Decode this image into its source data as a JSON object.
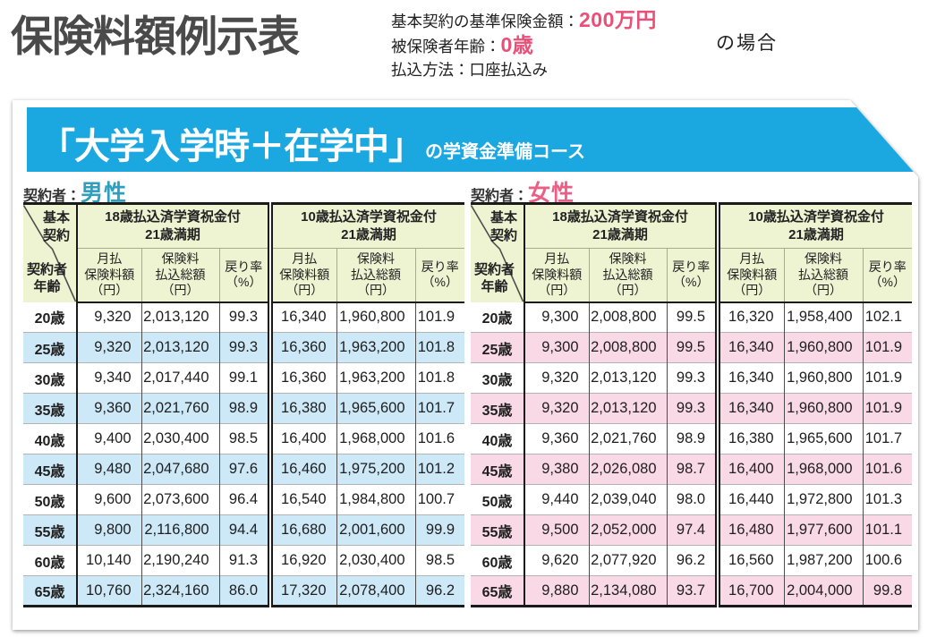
{
  "page": {
    "title": "保険料額例示表",
    "conditions": {
      "line1_label": "基本契約の基準保険金額：",
      "line1_value": "200万円",
      "line2_label": "被保険者年齢：",
      "line2_value": "0歳",
      "line3_label": "払込方法：口座払込み",
      "case_suffix": "の場合"
    }
  },
  "banner": {
    "title": "「大学入学時＋在学中」",
    "subtitle": "の学資金準備コース"
  },
  "table_header": {
    "corner_top": "基本\n契約",
    "corner_bottom": "契約者\n年齢",
    "group1": "18歳払込済学資祝金付\n21歳満期",
    "group2": "10歳払込済学資祝金付\n21歳満期",
    "sub1": "月払\n保険料額\n（円）",
    "sub2": "保険料\n払込総額\n（円）",
    "sub3": "戻り率\n（%）"
  },
  "tables": [
    {
      "id": "male",
      "contractor_label": "契約者：",
      "contractor": "男性",
      "stripe": "blue",
      "rows": [
        {
          "age": "20歳",
          "cells": [
            "9,320",
            "2,013,120",
            "99.3",
            "16,340",
            "1,960,800",
            "101.9"
          ]
        },
        {
          "age": "25歳",
          "cells": [
            "9,320",
            "2,013,120",
            "99.3",
            "16,360",
            "1,963,200",
            "101.8"
          ]
        },
        {
          "age": "30歳",
          "cells": [
            "9,340",
            "2,017,440",
            "99.1",
            "16,360",
            "1,963,200",
            "101.8"
          ]
        },
        {
          "age": "35歳",
          "cells": [
            "9,360",
            "2,021,760",
            "98.9",
            "16,380",
            "1,965,600",
            "101.7"
          ]
        },
        {
          "age": "40歳",
          "cells": [
            "9,400",
            "2,030,400",
            "98.5",
            "16,400",
            "1,968,000",
            "101.6"
          ]
        },
        {
          "age": "45歳",
          "cells": [
            "9,480",
            "2,047,680",
            "97.6",
            "16,460",
            "1,975,200",
            "101.2"
          ]
        },
        {
          "age": "50歳",
          "cells": [
            "9,600",
            "2,073,600",
            "96.4",
            "16,540",
            "1,984,800",
            "100.7"
          ]
        },
        {
          "age": "55歳",
          "cells": [
            "9,800",
            "2,116,800",
            "94.4",
            "16,680",
            "2,001,600",
            "99.9"
          ]
        },
        {
          "age": "60歳",
          "cells": [
            "10,140",
            "2,190,240",
            "91.3",
            "16,920",
            "2,030,400",
            "98.5"
          ]
        },
        {
          "age": "65歳",
          "cells": [
            "10,760",
            "2,324,160",
            "86.0",
            "17,320",
            "2,078,400",
            "96.2"
          ]
        }
      ]
    },
    {
      "id": "female",
      "contractor_label": "契約者：",
      "contractor": "女性",
      "stripe": "pink",
      "rows": [
        {
          "age": "20歳",
          "cells": [
            "9,300",
            "2,008,800",
            "99.5",
            "16,320",
            "1,958,400",
            "102.1"
          ]
        },
        {
          "age": "25歳",
          "cells": [
            "9,300",
            "2,008,800",
            "99.5",
            "16,340",
            "1,960,800",
            "101.9"
          ]
        },
        {
          "age": "30歳",
          "cells": [
            "9,320",
            "2,013,120",
            "99.3",
            "16,340",
            "1,960,800",
            "101.9"
          ]
        },
        {
          "age": "35歳",
          "cells": [
            "9,320",
            "2,013,120",
            "99.3",
            "16,340",
            "1,960,800",
            "101.9"
          ]
        },
        {
          "age": "40歳",
          "cells": [
            "9,360",
            "2,021,760",
            "98.9",
            "16,380",
            "1,965,600",
            "101.7"
          ]
        },
        {
          "age": "45歳",
          "cells": [
            "9,380",
            "2,026,080",
            "98.7",
            "16,400",
            "1,968,000",
            "101.6"
          ]
        },
        {
          "age": "50歳",
          "cells": [
            "9,440",
            "2,039,040",
            "98.0",
            "16,440",
            "1,972,800",
            "101.3"
          ]
        },
        {
          "age": "55歳",
          "cells": [
            "9,500",
            "2,052,000",
            "97.4",
            "16,480",
            "1,977,600",
            "101.1"
          ]
        },
        {
          "age": "60歳",
          "cells": [
            "9,620",
            "2,077,920",
            "96.2",
            "16,560",
            "1,987,200",
            "100.6"
          ]
        },
        {
          "age": "65歳",
          "cells": [
            "9,880",
            "2,134,080",
            "93.7",
            "16,700",
            "2,004,000",
            "99.8"
          ]
        }
      ]
    }
  ],
  "colors": {
    "banner_bg": "#1ba7e0",
    "accent_pink": "#ea4f77",
    "male_color": "#2f9fc0",
    "female_color": "#ea5f85",
    "header_bg": "#eef3d2",
    "stripe_blue": "#cde8f7",
    "stripe_pink": "#f9d9e5",
    "line_dark": "#1a1a1a",
    "title_color": "#4a4a4a"
  }
}
